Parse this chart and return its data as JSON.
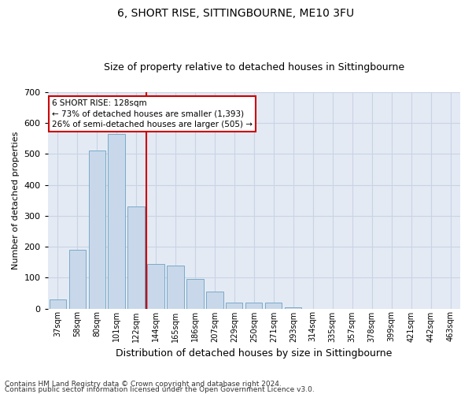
{
  "title": "6, SHORT RISE, SITTINGBOURNE, ME10 3FU",
  "subtitle": "Size of property relative to detached houses in Sittingbourne",
  "xlabel": "Distribution of detached houses by size in Sittingbourne",
  "ylabel": "Number of detached properties",
  "footnote1": "Contains HM Land Registry data © Crown copyright and database right 2024.",
  "footnote2": "Contains public sector information licensed under the Open Government Licence v3.0.",
  "categories": [
    "37sqm",
    "58sqm",
    "80sqm",
    "101sqm",
    "122sqm",
    "144sqm",
    "165sqm",
    "186sqm",
    "207sqm",
    "229sqm",
    "250sqm",
    "271sqm",
    "293sqm",
    "314sqm",
    "335sqm",
    "357sqm",
    "378sqm",
    "399sqm",
    "421sqm",
    "442sqm",
    "463sqm"
  ],
  "values": [
    30,
    190,
    510,
    565,
    330,
    145,
    140,
    95,
    55,
    20,
    20,
    20,
    5,
    0,
    0,
    0,
    0,
    0,
    0,
    0,
    0
  ],
  "bar_color": "#c8d8ea",
  "bar_edge_color": "#7aaac8",
  "grid_color": "#c8d4e4",
  "background_color": "#e4eaf4",
  "vline_color": "#cc0000",
  "vline_pos": 4.5,
  "annotation_text": "6 SHORT RISE: 128sqm\n← 73% of detached houses are smaller (1,393)\n26% of semi-detached houses are larger (505) →",
  "annotation_box_facecolor": "#ffffff",
  "annotation_box_edgecolor": "#cc0000",
  "ylim": [
    0,
    700
  ],
  "yticks": [
    0,
    100,
    200,
    300,
    400,
    500,
    600,
    700
  ],
  "title_fontsize": 10,
  "subtitle_fontsize": 9,
  "ylabel_fontsize": 8,
  "xlabel_fontsize": 9
}
